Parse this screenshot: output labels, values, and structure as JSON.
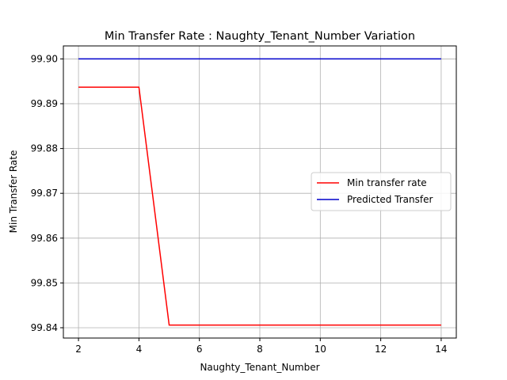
{
  "chart_data": {
    "type": "line",
    "title": "Min Transfer Rate : Naughty_Tenant_Number Variation",
    "xlabel": "Naughty_Tenant_Number",
    "ylabel": "Min Transfer Rate",
    "xlim": [
      1.5,
      14.5
    ],
    "ylim": [
      99.8377,
      99.9029
    ],
    "xticks": [
      2,
      4,
      6,
      8,
      10,
      12,
      14
    ],
    "yticks": [
      99.84,
      99.85,
      99.86,
      99.87,
      99.88,
      99.89,
      99.9
    ],
    "ytick_labels": [
      "99.84",
      "99.85",
      "99.86",
      "99.87",
      "99.88",
      "99.89",
      "99.90"
    ],
    "grid": true,
    "legend_position": "center-right",
    "series": [
      {
        "name": "Min transfer rate",
        "color": "#ff0000",
        "x": [
          2,
          3,
          4,
          5,
          6,
          7,
          8,
          9,
          10,
          11,
          12,
          13,
          14
        ],
        "y": [
          99.8937,
          99.8937,
          99.8937,
          99.8406,
          99.8406,
          99.8406,
          99.8406,
          99.8406,
          99.8406,
          99.8406,
          99.8406,
          99.8406,
          99.8406
        ]
      },
      {
        "name": "Predicted Transfer",
        "color": "#0000cc",
        "x": [
          2,
          3,
          4,
          5,
          6,
          7,
          8,
          9,
          10,
          11,
          12,
          13,
          14
        ],
        "y": [
          99.9,
          99.9,
          99.9,
          99.9,
          99.9,
          99.9,
          99.9,
          99.9,
          99.9,
          99.9,
          99.9,
          99.9,
          99.9
        ]
      }
    ]
  }
}
